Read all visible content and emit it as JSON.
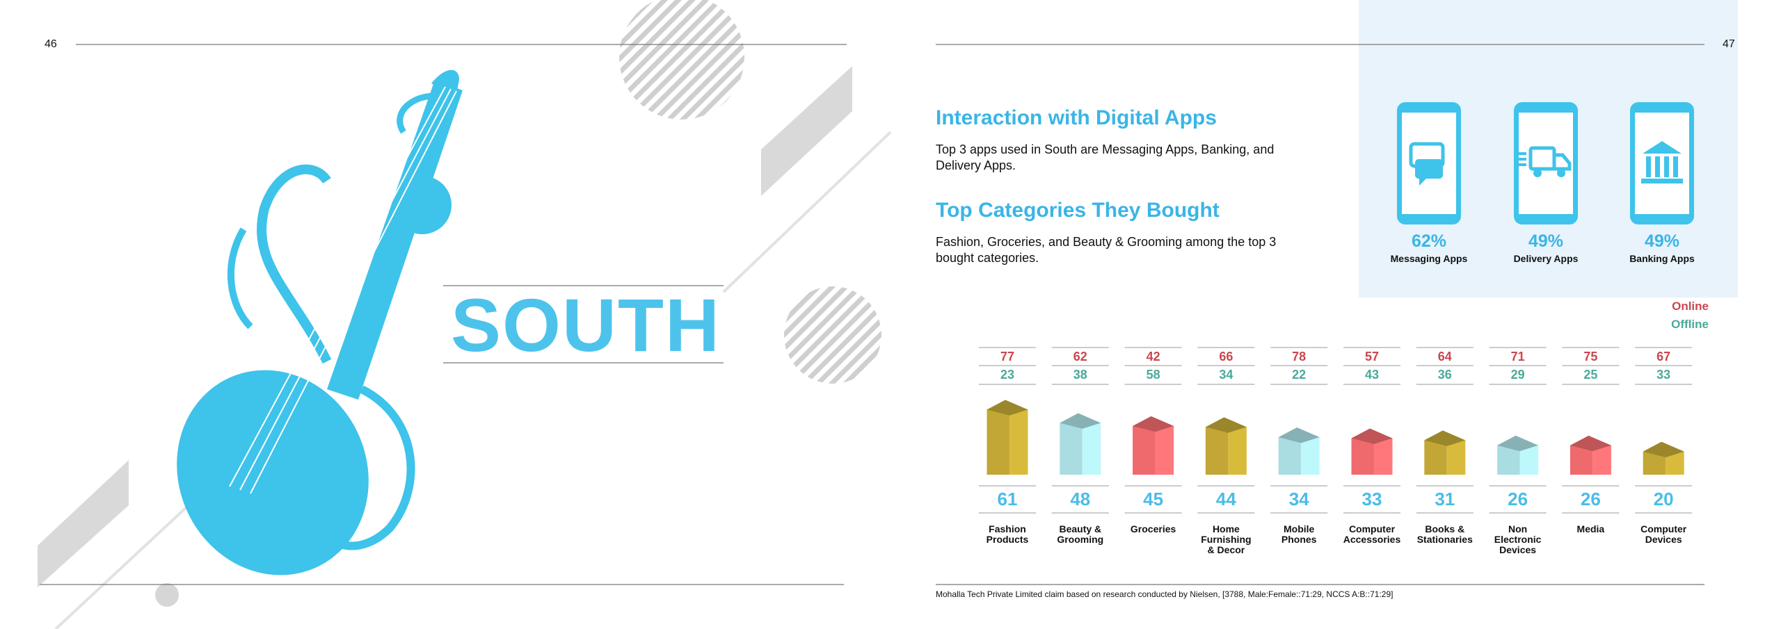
{
  "left_page": {
    "page_number": "46",
    "title": "SOUTH"
  },
  "right_page": {
    "page_number": "47",
    "sections": [
      {
        "heading": "Interaction with Digital Apps",
        "text": "Top 3 apps used in South are Messaging Apps, Banking, and Delivery Apps."
      },
      {
        "heading": "Top Categories They Bought",
        "text": "Fashion, Groceries, and Beauty & Grooming among the top 3 bought categories."
      }
    ],
    "apps": [
      {
        "value": "62%",
        "label": "Messaging Apps"
      },
      {
        "value": "49%",
        "label": "Delivery Apps"
      },
      {
        "value": "49%",
        "label": "Banking Apps"
      }
    ],
    "legend": {
      "online": "Online",
      "offline": "Offline",
      "online_color": "#c9474f",
      "offline_color": "#4aa89a"
    },
    "categories": [
      {
        "label": "Fashion Products",
        "online": 77,
        "offline": 23,
        "total": 61,
        "color": "#c2a736"
      },
      {
        "label": "Beauty & Grooming",
        "online": 62,
        "offline": 38,
        "total": 48,
        "color": "#a9dde2"
      },
      {
        "label": "Groceries",
        "online": 42,
        "offline": 58,
        "total": 45,
        "color": "#ef6a6d"
      },
      {
        "label": "Home Furnishing & Decor",
        "online": 66,
        "offline": 34,
        "total": 44,
        "color": "#c2a736"
      },
      {
        "label": "Mobile Phones",
        "online": 78,
        "offline": 22,
        "total": 34,
        "color": "#a9dde2"
      },
      {
        "label": "Computer Accessories",
        "online": 57,
        "offline": 43,
        "total": 33,
        "color": "#ef6a6d"
      },
      {
        "label": "Books & Stationaries",
        "online": 64,
        "offline": 36,
        "total": 31,
        "color": "#c2a736"
      },
      {
        "label": "Non Electronic Devices",
        "online": 71,
        "offline": 29,
        "total": 26,
        "color": "#a9dde2"
      },
      {
        "label": "Media",
        "online": 75,
        "offline": 25,
        "total": 26,
        "color": "#ef6a6d"
      },
      {
        "label": "Computer Devices",
        "online": 67,
        "offline": 33,
        "total": 20,
        "color": "#c2a736"
      }
    ],
    "footnote": "Mohalla Tech Private Limited claim based on research conducted by Nielsen, [3788, Male:Female::71:29, NCCS A:B::71:29]"
  }
}
